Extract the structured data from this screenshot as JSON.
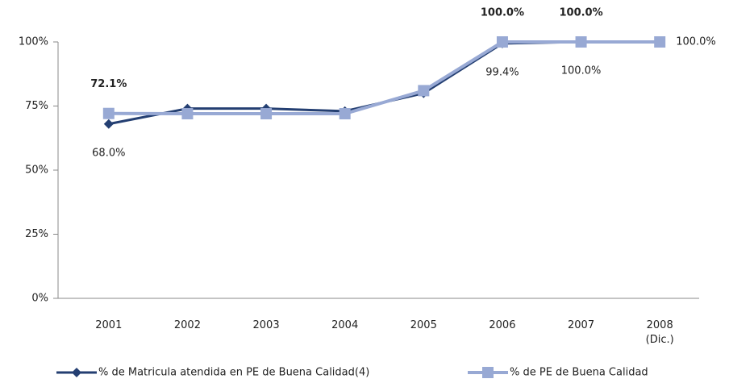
{
  "chart_data": {
    "type": "line",
    "categories": [
      "2001",
      "2002",
      "2003",
      "2004",
      "2005",
      "2006",
      "2007",
      "2008 (Dic.)"
    ],
    "series": [
      {
        "name": "% de Matricula atendida en PE de Buena Calidad(4)",
        "color": "#243f72",
        "marker": "diamond",
        "values": [
          68.0,
          74,
          74,
          73,
          80,
          99.4,
          100.0,
          100.0
        ],
        "value_labels": [
          "68.0%",
          null,
          null,
          null,
          null,
          "99.4%",
          "100.0%",
          "100.0%"
        ]
      },
      {
        "name": "% de PE de Buena Calidad",
        "color": "#98a9d4",
        "marker": "square",
        "values": [
          72.1,
          72,
          72,
          72,
          81,
          100.0,
          100.0,
          100
        ],
        "value_labels": [
          "72.1%",
          null,
          null,
          null,
          null,
          "100.0%",
          "100.0%",
          null
        ]
      }
    ],
    "ylim": [
      0,
      100
    ],
    "yticks": [
      {
        "value": 0,
        "label": "0%"
      },
      {
        "value": 25,
        "label": "25%"
      },
      {
        "value": 50,
        "label": "50%"
      },
      {
        "value": 75,
        "label": "75%"
      },
      {
        "value": 100,
        "label": "100%"
      }
    ],
    "legend": "bottom"
  }
}
